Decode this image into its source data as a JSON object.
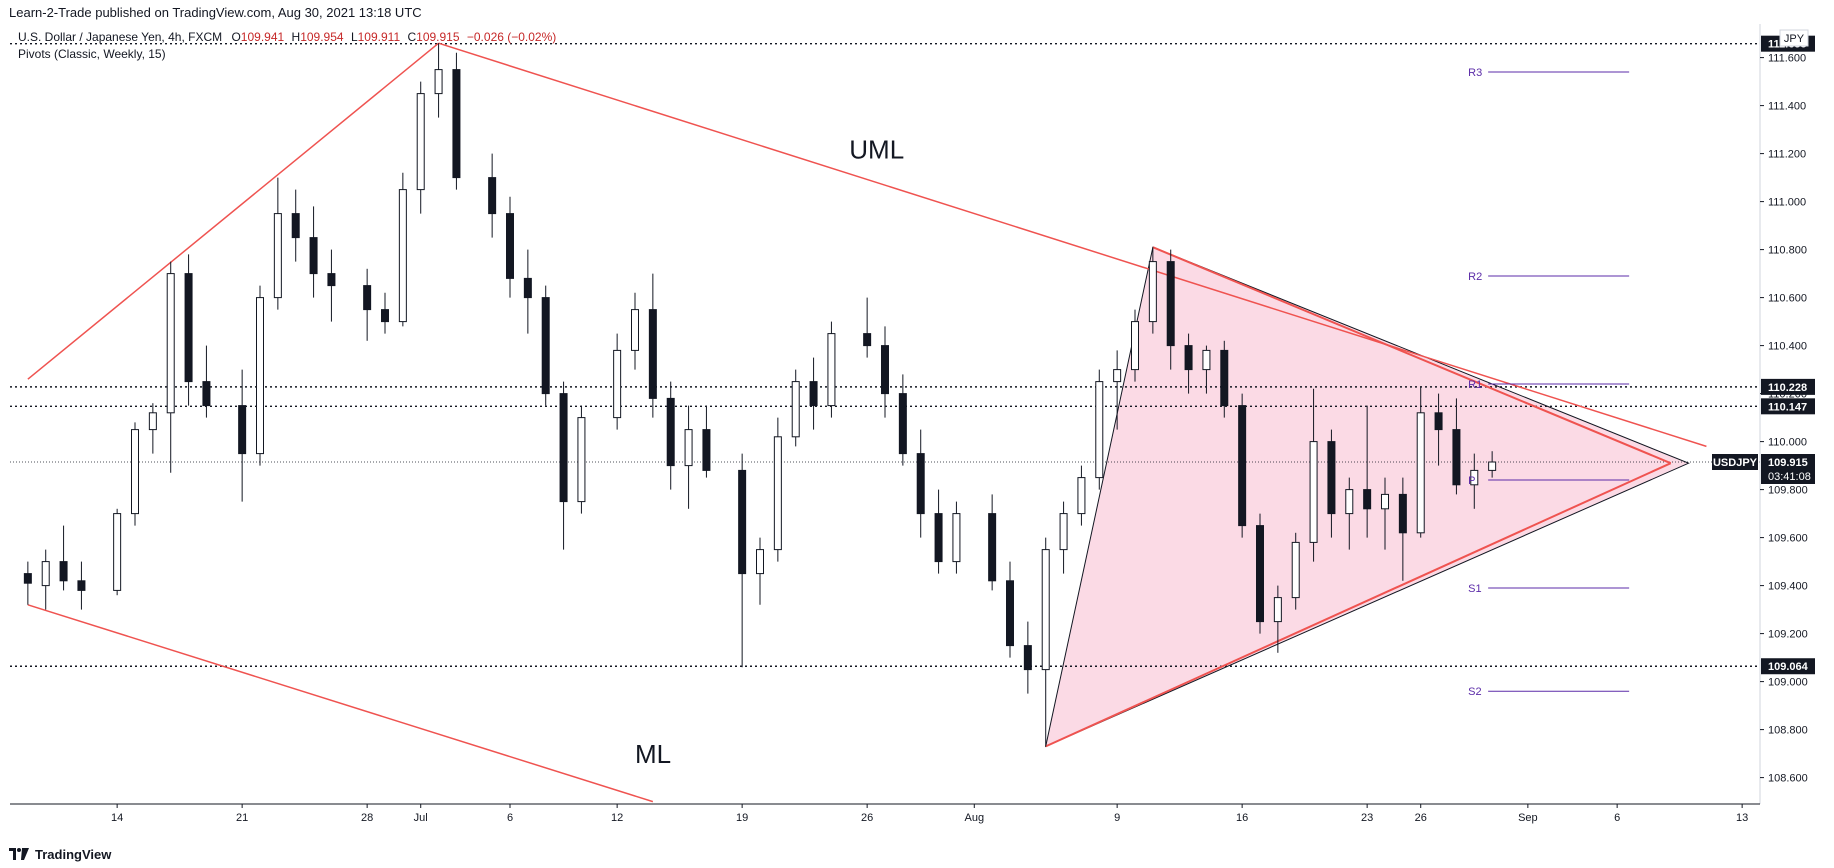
{
  "header": {
    "publisher_line": "Learn-2-Trade published on TradingView.com, Aug 30, 2021 13:18 UTC"
  },
  "legend": {
    "symbol": "U.S. Dollar / Japanese Yen, 4h, FXCM",
    "open_label": "O",
    "open": "109.941",
    "high_label": "H",
    "high": "109.954",
    "low_label": "L",
    "low": "109.911",
    "close_label": "C",
    "close": "109.915",
    "change": "−0.026 (−0.02%)",
    "indicator": "Pivots (Classic, Weekly, 15)"
  },
  "currency_label": "JPY",
  "footer": {
    "brand": "TradingView",
    "logo_icon": "tradingview-logo-icon"
  },
  "colors": {
    "up": "#ffffff",
    "down": "#131722",
    "wick": "#131722",
    "trend_line": "#ef5350",
    "triangle_fill": "#f8bbd0",
    "pivot": "#5b2ba8",
    "price_badge": "#131722"
  },
  "chart_data": {
    "type": "candlestick",
    "title": "U.S. Dollar / Japanese Yen, 4h, FXCM",
    "ylim": [
      108.49,
      111.74
    ],
    "y_ticks": [
      "108.600",
      "108.800",
      "109.000",
      "109.200",
      "109.400",
      "109.600",
      "109.800",
      "110.000",
      "110.200",
      "110.400",
      "110.600",
      "110.800",
      "111.000",
      "111.200",
      "111.400",
      "111.600"
    ],
    "x_ticks": [
      "14",
      "21",
      "28",
      "Jul",
      "6",
      "12",
      "19",
      "26",
      "Aug",
      "9",
      "16",
      "23",
      "26",
      "Sep",
      "6",
      "13"
    ],
    "price_levels": [
      {
        "label": "111.658",
        "value": 111.658
      },
      {
        "label": "110.228",
        "value": 110.228
      },
      {
        "label": "110.147",
        "value": 110.147
      },
      {
        "label": "109.064",
        "value": 109.064
      }
    ],
    "last_price": {
      "symbol": "USDJPY",
      "value": "109.915",
      "countdown": "03:41:08",
      "level": 109.915
    },
    "pivots": [
      {
        "label": "R3",
        "value": 111.54
      },
      {
        "label": "R2",
        "value": 110.69
      },
      {
        "label": "R1",
        "value": 110.24
      },
      {
        "label": "P",
        "value": 109.84
      },
      {
        "label": "S1",
        "value": 109.39
      },
      {
        "label": "S2",
        "value": 108.96
      }
    ],
    "annotations": [
      {
        "label": "UML",
        "x_date": "2021-07-25",
        "y": 111.18
      },
      {
        "label": "ML",
        "x_date": "2021-07-13",
        "y": 108.66
      }
    ],
    "trend_lines": [
      {
        "name": "upper",
        "from": [
          "2021-06-09",
          110.26
        ],
        "to": [
          "2021-07-02",
          111.66
        ]
      },
      {
        "name": "uml",
        "from": [
          "2021-07-02",
          111.66
        ],
        "to": [
          "2021-09-11",
          109.98
        ]
      },
      {
        "name": "ml",
        "from": [
          "2021-06-09",
          109.32
        ],
        "to": [
          "2021-07-14",
          108.5
        ]
      },
      {
        "name": "wedge_upper",
        "from": [
          "2021-08-11",
          110.81
        ],
        "to": [
          "2021-09-09",
          109.91
        ]
      },
      {
        "name": "wedge_lower",
        "from": [
          "2021-08-05",
          108.73
        ],
        "to": [
          "2021-09-09",
          109.91
        ]
      }
    ],
    "triangle": [
      [
        "2021-08-05",
        108.73
      ],
      [
        "2021-08-11",
        110.81
      ],
      [
        "2021-09-10",
        109.91
      ]
    ],
    "candles": [
      {
        "t": "2021-06-09",
        "o": 109.45,
        "h": 109.5,
        "l": 109.32,
        "c": 109.41
      },
      {
        "t": "2021-06-10",
        "o": 109.4,
        "h": 109.55,
        "l": 109.3,
        "c": 109.5
      },
      {
        "t": "2021-06-11",
        "o": 109.5,
        "h": 109.65,
        "l": 109.38,
        "c": 109.42
      },
      {
        "t": "2021-06-12",
        "o": 109.42,
        "h": 109.5,
        "l": 109.3,
        "c": 109.38
      },
      {
        "t": "2021-06-14",
        "o": 109.38,
        "h": 109.72,
        "l": 109.36,
        "c": 109.7
      },
      {
        "t": "2021-06-15",
        "o": 109.7,
        "h": 110.08,
        "l": 109.65,
        "c": 110.05
      },
      {
        "t": "2021-06-16",
        "o": 110.05,
        "h": 110.16,
        "l": 109.95,
        "c": 110.12
      },
      {
        "t": "2021-06-17",
        "o": 110.12,
        "h": 110.75,
        "l": 109.87,
        "c": 110.7
      },
      {
        "t": "2021-06-18",
        "o": 110.7,
        "h": 110.78,
        "l": 110.15,
        "c": 110.25
      },
      {
        "t": "2021-06-19",
        "o": 110.25,
        "h": 110.4,
        "l": 110.1,
        "c": 110.15
      },
      {
        "t": "2021-06-21",
        "o": 110.15,
        "h": 110.3,
        "l": 109.75,
        "c": 109.95
      },
      {
        "t": "2021-06-22",
        "o": 109.95,
        "h": 110.65,
        "l": 109.9,
        "c": 110.6
      },
      {
        "t": "2021-06-23",
        "o": 110.6,
        "h": 111.1,
        "l": 110.55,
        "c": 110.95
      },
      {
        "t": "2021-06-24",
        "o": 110.95,
        "h": 111.05,
        "l": 110.75,
        "c": 110.85
      },
      {
        "t": "2021-06-25",
        "o": 110.85,
        "h": 110.98,
        "l": 110.6,
        "c": 110.7
      },
      {
        "t": "2021-06-26",
        "o": 110.7,
        "h": 110.8,
        "l": 110.5,
        "c": 110.65
      },
      {
        "t": "2021-06-28",
        "o": 110.65,
        "h": 110.72,
        "l": 110.42,
        "c": 110.55
      },
      {
        "t": "2021-06-29",
        "o": 110.55,
        "h": 110.62,
        "l": 110.45,
        "c": 110.5
      },
      {
        "t": "2021-06-30",
        "o": 110.5,
        "h": 111.12,
        "l": 110.48,
        "c": 111.05
      },
      {
        "t": "2021-07-01",
        "o": 111.05,
        "h": 111.5,
        "l": 110.95,
        "c": 111.45
      },
      {
        "t": "2021-07-02",
        "o": 111.45,
        "h": 111.66,
        "l": 111.35,
        "c": 111.55
      },
      {
        "t": "2021-07-03",
        "o": 111.55,
        "h": 111.62,
        "l": 111.05,
        "c": 111.1
      },
      {
        "t": "2021-07-05",
        "o": 111.1,
        "h": 111.2,
        "l": 110.85,
        "c": 110.95
      },
      {
        "t": "2021-07-06",
        "o": 110.95,
        "h": 111.02,
        "l": 110.6,
        "c": 110.68
      },
      {
        "t": "2021-07-07",
        "o": 110.68,
        "h": 110.8,
        "l": 110.45,
        "c": 110.6
      },
      {
        "t": "2021-07-08",
        "o": 110.6,
        "h": 110.65,
        "l": 110.15,
        "c": 110.2
      },
      {
        "t": "2021-07-09",
        "o": 110.2,
        "h": 110.25,
        "l": 109.55,
        "c": 109.75
      },
      {
        "t": "2021-07-10",
        "o": 109.75,
        "h": 110.15,
        "l": 109.7,
        "c": 110.1
      },
      {
        "t": "2021-07-12",
        "o": 110.1,
        "h": 110.45,
        "l": 110.05,
        "c": 110.38
      },
      {
        "t": "2021-07-13",
        "o": 110.38,
        "h": 110.62,
        "l": 110.3,
        "c": 110.55
      },
      {
        "t": "2021-07-14",
        "o": 110.55,
        "h": 110.7,
        "l": 110.1,
        "c": 110.18
      },
      {
        "t": "2021-07-15",
        "o": 110.18,
        "h": 110.25,
        "l": 109.8,
        "c": 109.9
      },
      {
        "t": "2021-07-16",
        "o": 109.9,
        "h": 110.15,
        "l": 109.72,
        "c": 110.05
      },
      {
        "t": "2021-07-17",
        "o": 110.05,
        "h": 110.15,
        "l": 109.85,
        "c": 109.88
      },
      {
        "t": "2021-07-19",
        "o": 109.88,
        "h": 109.95,
        "l": 109.06,
        "c": 109.45
      },
      {
        "t": "2021-07-20",
        "o": 109.45,
        "h": 109.6,
        "l": 109.32,
        "c": 109.55
      },
      {
        "t": "2021-07-21",
        "o": 109.55,
        "h": 110.1,
        "l": 109.5,
        "c": 110.02
      },
      {
        "t": "2021-07-22",
        "o": 110.02,
        "h": 110.3,
        "l": 109.98,
        "c": 110.25
      },
      {
        "t": "2021-07-23",
        "o": 110.25,
        "h": 110.35,
        "l": 110.05,
        "c": 110.15
      },
      {
        "t": "2021-07-24",
        "o": 110.15,
        "h": 110.5,
        "l": 110.1,
        "c": 110.45
      },
      {
        "t": "2021-07-26",
        "o": 110.45,
        "h": 110.6,
        "l": 110.35,
        "c": 110.4
      },
      {
        "t": "2021-07-27",
        "o": 110.4,
        "h": 110.48,
        "l": 110.1,
        "c": 110.2
      },
      {
        "t": "2021-07-28",
        "o": 110.2,
        "h": 110.28,
        "l": 109.9,
        "c": 109.95
      },
      {
        "t": "2021-07-29",
        "o": 109.95,
        "h": 110.05,
        "l": 109.6,
        "c": 109.7
      },
      {
        "t": "2021-07-30",
        "o": 109.7,
        "h": 109.8,
        "l": 109.45,
        "c": 109.5
      },
      {
        "t": "2021-07-31",
        "o": 109.5,
        "h": 109.75,
        "l": 109.45,
        "c": 109.7
      },
      {
        "t": "2021-08-02",
        "o": 109.7,
        "h": 109.78,
        "l": 109.38,
        "c": 109.42
      },
      {
        "t": "2021-08-03",
        "o": 109.42,
        "h": 109.5,
        "l": 109.1,
        "c": 109.15
      },
      {
        "t": "2021-08-04",
        "o": 109.15,
        "h": 109.25,
        "l": 108.95,
        "c": 109.05
      },
      {
        "t": "2021-08-05",
        "o": 109.05,
        "h": 109.6,
        "l": 108.73,
        "c": 109.55
      },
      {
        "t": "2021-08-06",
        "o": 109.55,
        "h": 109.75,
        "l": 109.45,
        "c": 109.7
      },
      {
        "t": "2021-08-07",
        "o": 109.7,
        "h": 109.9,
        "l": 109.65,
        "c": 109.85
      },
      {
        "t": "2021-08-08",
        "o": 109.85,
        "h": 110.3,
        "l": 109.8,
        "c": 110.25
      },
      {
        "t": "2021-08-09",
        "o": 110.25,
        "h": 110.38,
        "l": 110.05,
        "c": 110.3
      },
      {
        "t": "2021-08-10",
        "o": 110.3,
        "h": 110.55,
        "l": 110.25,
        "c": 110.5
      },
      {
        "t": "2021-08-11",
        "o": 110.5,
        "h": 110.81,
        "l": 110.45,
        "c": 110.75
      },
      {
        "t": "2021-08-12",
        "o": 110.75,
        "h": 110.8,
        "l": 110.3,
        "c": 110.4
      },
      {
        "t": "2021-08-13",
        "o": 110.4,
        "h": 110.45,
        "l": 110.2,
        "c": 110.3
      },
      {
        "t": "2021-08-14",
        "o": 110.3,
        "h": 110.4,
        "l": 110.2,
        "c": 110.38
      },
      {
        "t": "2021-08-15",
        "o": 110.38,
        "h": 110.42,
        "l": 110.1,
        "c": 110.15
      },
      {
        "t": "2021-08-16",
        "o": 110.15,
        "h": 110.2,
        "l": 109.6,
        "c": 109.65
      },
      {
        "t": "2021-08-17",
        "o": 109.65,
        "h": 109.7,
        "l": 109.2,
        "c": 109.25
      },
      {
        "t": "2021-08-18",
        "o": 109.25,
        "h": 109.4,
        "l": 109.12,
        "c": 109.35
      },
      {
        "t": "2021-08-19",
        "o": 109.35,
        "h": 109.62,
        "l": 109.3,
        "c": 109.58
      },
      {
        "t": "2021-08-20",
        "o": 109.58,
        "h": 110.22,
        "l": 109.5,
        "c": 110.0
      },
      {
        "t": "2021-08-21",
        "o": 110.0,
        "h": 110.05,
        "l": 109.6,
        "c": 109.7
      },
      {
        "t": "2021-08-22",
        "o": 109.7,
        "h": 109.85,
        "l": 109.55,
        "c": 109.8
      },
      {
        "t": "2021-08-23",
        "o": 109.8,
        "h": 110.15,
        "l": 109.6,
        "c": 109.72
      },
      {
        "t": "2021-08-24",
        "o": 109.72,
        "h": 109.85,
        "l": 109.55,
        "c": 109.78
      },
      {
        "t": "2021-08-25",
        "o": 109.78,
        "h": 109.85,
        "l": 109.42,
        "c": 109.62
      },
      {
        "t": "2021-08-26",
        "o": 109.62,
        "h": 110.23,
        "l": 109.6,
        "c": 110.12
      },
      {
        "t": "2021-08-27",
        "o": 110.12,
        "h": 110.2,
        "l": 109.9,
        "c": 110.05
      },
      {
        "t": "2021-08-28",
        "o": 110.05,
        "h": 110.18,
        "l": 109.78,
        "c": 109.82
      },
      {
        "t": "2021-08-29",
        "o": 109.82,
        "h": 109.95,
        "l": 109.72,
        "c": 109.88
      },
      {
        "t": "2021-08-30",
        "o": 109.88,
        "h": 109.96,
        "l": 109.85,
        "c": 109.915
      }
    ]
  }
}
